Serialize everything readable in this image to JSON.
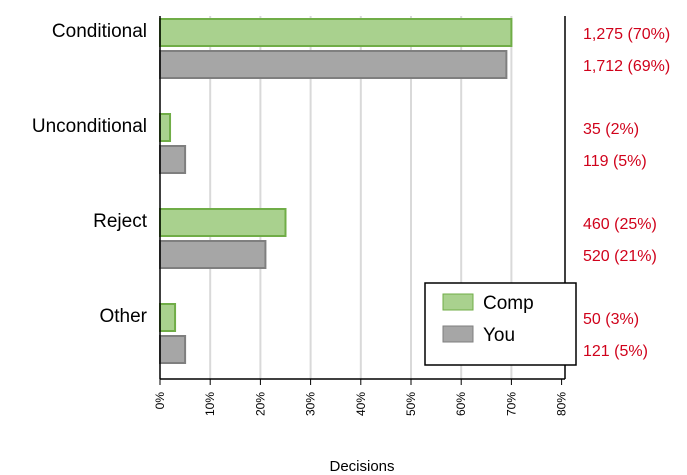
{
  "chart_data": {
    "type": "bar",
    "orientation": "horizontal",
    "categories": [
      "Conditional",
      "Unconditional",
      "Reject",
      "Other"
    ],
    "series": [
      {
        "name": "Comp",
        "values": [
          70,
          2,
          25,
          3
        ],
        "labels": [
          "1,275 (70%)",
          "35 (2%)",
          "460 (25%)",
          "50 (3%)"
        ],
        "fill": "#a9d18e",
        "stroke": "#70ad47"
      },
      {
        "name": "You",
        "values": [
          69,
          5,
          21,
          5
        ],
        "labels": [
          "1,712 (69%)",
          "119 (5%)",
          "520 (21%)",
          "121 (5%)"
        ],
        "fill": "#a6a6a6",
        "stroke": "#7f7f7f"
      }
    ],
    "xlabel": "Decisions",
    "ylabel": "",
    "xlim": [
      0,
      80
    ],
    "ticks": [
      "0%",
      "10%",
      "20%",
      "30%",
      "40%",
      "50%",
      "60%",
      "70%",
      "80%"
    ],
    "grid": true,
    "legend_position": "bottom-right",
    "data_label_color": "#d0021b",
    "grid_color": "#d9d9d9"
  }
}
